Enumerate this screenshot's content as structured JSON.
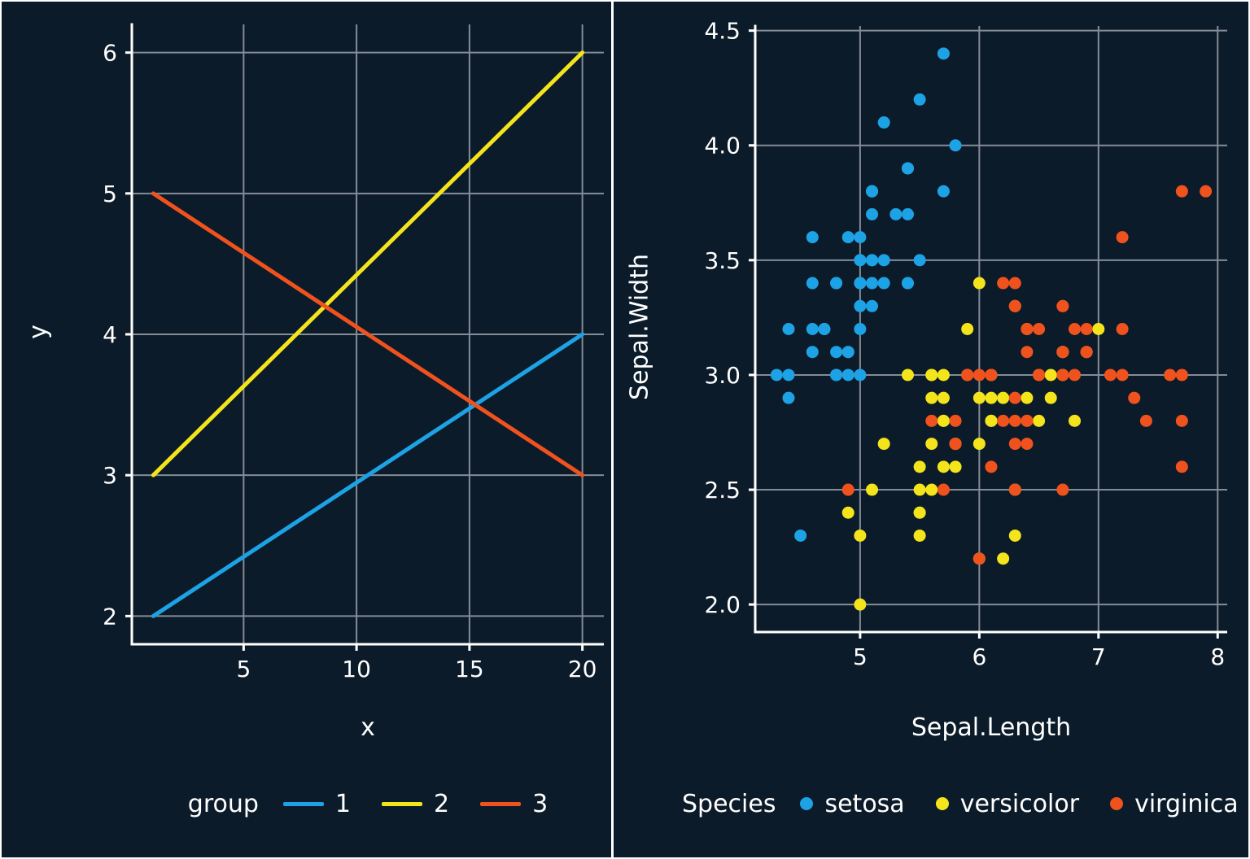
{
  "colors": {
    "background": "#0c1b2a",
    "text": "#ffffff",
    "grid": "#848c96",
    "axis": "#ffffff"
  },
  "chart_data": [
    {
      "type": "line",
      "title": "",
      "xlabel": "x",
      "ylabel": "y",
      "xlim": [
        0.05,
        20.95
      ],
      "ylim": [
        1.8,
        6.2
      ],
      "xticks": [
        5,
        10,
        15,
        20
      ],
      "yticks": [
        2,
        3,
        4,
        5,
        6
      ],
      "grid": true,
      "legend": {
        "title": "group",
        "position": "bottom"
      },
      "series": [
        {
          "name": "1",
          "color": "#1DA2E5",
          "x": [
            1,
            20
          ],
          "y": [
            2,
            4
          ]
        },
        {
          "name": "2",
          "color": "#F3E41C",
          "x": [
            1,
            20
          ],
          "y": [
            3,
            6
          ]
        },
        {
          "name": "3",
          "color": "#F0521E",
          "x": [
            1,
            20
          ],
          "y": [
            5,
            3
          ]
        }
      ]
    },
    {
      "type": "scatter",
      "title": "",
      "xlabel": "Sepal.Length",
      "ylabel": "Sepal.Width",
      "xlim": [
        4.12,
        8.08
      ],
      "ylim": [
        1.88,
        4.52
      ],
      "xticks": [
        5,
        6,
        7,
        8
      ],
      "yticks": [
        2.0,
        2.5,
        3.0,
        3.5,
        4.0,
        4.5
      ],
      "ytick_labels": [
        "2.0",
        "2.5",
        "3.0",
        "3.5",
        "4.0",
        "4.5"
      ],
      "grid": true,
      "legend": {
        "title": "Species",
        "position": "bottom"
      },
      "series": [
        {
          "name": "setosa",
          "color": "#1DA2E5",
          "points": [
            [
              5.1,
              3.5
            ],
            [
              4.9,
              3.0
            ],
            [
              4.7,
              3.2
            ],
            [
              4.6,
              3.1
            ],
            [
              5.0,
              3.6
            ],
            [
              5.4,
              3.9
            ],
            [
              4.6,
              3.4
            ],
            [
              5.0,
              3.4
            ],
            [
              4.4,
              2.9
            ],
            [
              4.9,
              3.1
            ],
            [
              5.4,
              3.7
            ],
            [
              4.8,
              3.4
            ],
            [
              4.8,
              3.0
            ],
            [
              4.3,
              3.0
            ],
            [
              5.8,
              4.0
            ],
            [
              5.7,
              4.4
            ],
            [
              5.4,
              3.9
            ],
            [
              5.1,
              3.5
            ],
            [
              5.7,
              3.8
            ],
            [
              5.1,
              3.8
            ],
            [
              5.4,
              3.4
            ],
            [
              5.1,
              3.7
            ],
            [
              4.6,
              3.6
            ],
            [
              5.1,
              3.3
            ],
            [
              4.8,
              3.4
            ],
            [
              5.0,
              3.0
            ],
            [
              5.0,
              3.4
            ],
            [
              5.2,
              3.5
            ],
            [
              5.2,
              3.4
            ],
            [
              4.7,
              3.2
            ],
            [
              4.8,
              3.1
            ],
            [
              5.4,
              3.4
            ],
            [
              5.2,
              4.1
            ],
            [
              5.5,
              4.2
            ],
            [
              4.9,
              3.1
            ],
            [
              5.0,
              3.2
            ],
            [
              5.5,
              3.5
            ],
            [
              4.9,
              3.6
            ],
            [
              4.4,
              3.0
            ],
            [
              5.1,
              3.4
            ],
            [
              5.0,
              3.5
            ],
            [
              4.5,
              2.3
            ],
            [
              4.4,
              3.2
            ],
            [
              5.0,
              3.5
            ],
            [
              5.1,
              3.8
            ],
            [
              4.8,
              3.0
            ],
            [
              5.1,
              3.8
            ],
            [
              4.6,
              3.2
            ],
            [
              5.3,
              3.7
            ],
            [
              5.0,
              3.3
            ]
          ]
        },
        {
          "name": "versicolor",
          "color": "#F3E41C",
          "points": [
            [
              7.0,
              3.2
            ],
            [
              6.4,
              3.2
            ],
            [
              6.9,
              3.1
            ],
            [
              5.5,
              2.3
            ],
            [
              6.5,
              2.8
            ],
            [
              5.7,
              2.8
            ],
            [
              6.3,
              3.3
            ],
            [
              4.9,
              2.4
            ],
            [
              6.6,
              2.9
            ],
            [
              5.2,
              2.7
            ],
            [
              5.0,
              2.0
            ],
            [
              5.9,
              3.0
            ],
            [
              6.0,
              2.2
            ],
            [
              6.1,
              2.9
            ],
            [
              5.6,
              2.9
            ],
            [
              6.7,
              3.1
            ],
            [
              5.6,
              3.0
            ],
            [
              5.8,
              2.7
            ],
            [
              6.2,
              2.2
            ],
            [
              5.6,
              2.5
            ],
            [
              5.9,
              3.2
            ],
            [
              6.1,
              2.8
            ],
            [
              6.3,
              2.5
            ],
            [
              6.1,
              2.8
            ],
            [
              6.4,
              2.9
            ],
            [
              6.6,
              3.0
            ],
            [
              6.8,
              2.8
            ],
            [
              6.7,
              3.0
            ],
            [
              6.0,
              2.9
            ],
            [
              5.7,
              2.6
            ],
            [
              5.5,
              2.4
            ],
            [
              5.5,
              2.4
            ],
            [
              5.8,
              2.7
            ],
            [
              6.0,
              2.7
            ],
            [
              5.4,
              3.0
            ],
            [
              6.0,
              3.4
            ],
            [
              6.7,
              3.1
            ],
            [
              6.3,
              2.3
            ],
            [
              5.6,
              3.0
            ],
            [
              5.5,
              2.5
            ],
            [
              5.5,
              2.6
            ],
            [
              6.1,
              3.0
            ],
            [
              5.8,
              2.6
            ],
            [
              5.0,
              2.3
            ],
            [
              5.6,
              2.7
            ],
            [
              5.7,
              3.0
            ],
            [
              5.7,
              2.9
            ],
            [
              6.2,
              2.9
            ],
            [
              5.1,
              2.5
            ],
            [
              5.7,
              2.8
            ]
          ]
        },
        {
          "name": "virginica",
          "color": "#F0521E",
          "points": [
            [
              6.3,
              3.3
            ],
            [
              5.8,
              2.7
            ],
            [
              7.1,
              3.0
            ],
            [
              6.3,
              2.9
            ],
            [
              6.5,
              3.0
            ],
            [
              7.6,
              3.0
            ],
            [
              4.9,
              2.5
            ],
            [
              7.3,
              2.9
            ],
            [
              6.7,
              2.5
            ],
            [
              7.2,
              3.6
            ],
            [
              6.5,
              3.2
            ],
            [
              6.4,
              2.7
            ],
            [
              6.8,
              3.0
            ],
            [
              5.7,
              2.5
            ],
            [
              5.8,
              2.8
            ],
            [
              6.4,
              3.2
            ],
            [
              6.5,
              3.0
            ],
            [
              7.7,
              3.8
            ],
            [
              7.7,
              2.6
            ],
            [
              6.0,
              2.2
            ],
            [
              6.9,
              3.2
            ],
            [
              5.6,
              2.8
            ],
            [
              7.7,
              2.8
            ],
            [
              6.3,
              2.7
            ],
            [
              6.7,
              3.3
            ],
            [
              7.2,
              3.2
            ],
            [
              6.2,
              2.8
            ],
            [
              6.1,
              3.0
            ],
            [
              6.4,
              2.8
            ],
            [
              7.2,
              3.0
            ],
            [
              7.4,
              2.8
            ],
            [
              7.9,
              3.8
            ],
            [
              6.4,
              2.8
            ],
            [
              6.3,
              2.8
            ],
            [
              6.1,
              2.6
            ],
            [
              7.7,
              3.0
            ],
            [
              6.3,
              3.4
            ],
            [
              6.4,
              3.1
            ],
            [
              6.0,
              3.0
            ],
            [
              6.9,
              3.1
            ],
            [
              6.7,
              3.1
            ],
            [
              6.9,
              3.1
            ],
            [
              5.8,
              2.7
            ],
            [
              6.8,
              3.2
            ],
            [
              6.7,
              3.3
            ],
            [
              6.7,
              3.0
            ],
            [
              6.3,
              2.5
            ],
            [
              6.5,
              3.0
            ],
            [
              6.2,
              3.4
            ],
            [
              5.9,
              3.0
            ]
          ]
        }
      ]
    }
  ]
}
